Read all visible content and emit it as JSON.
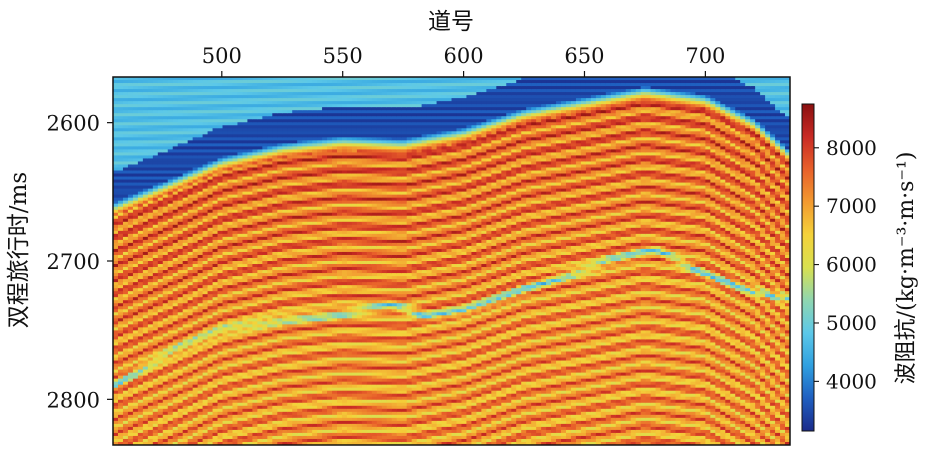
{
  "chart_data": {
    "type": "heatmap",
    "title": "",
    "xlabel": "道号",
    "ylabel": "双程旅行时/ms",
    "x_ticks": [
      "500",
      "550",
      "600",
      "650",
      "700"
    ],
    "x_tick_values": [
      500,
      550,
      600,
      650,
      700
    ],
    "y_ticks": [
      "2600",
      "2700",
      "2800"
    ],
    "y_tick_values": [
      2600,
      2700,
      2800
    ],
    "xlim": [
      455,
      735
    ],
    "ylim": [
      2567,
      2833
    ],
    "colorbar": {
      "label": "波阻抗/(kg·m⁻³·m·s⁻¹)",
      "ticks": [
        "4000",
        "5000",
        "6000",
        "7000",
        "8000"
      ],
      "tick_values": [
        4000,
        5000,
        6000,
        7000,
        8000
      ],
      "range": [
        3150,
        8750
      ],
      "colormap": [
        "#1a2a8a",
        "#1f5fc0",
        "#2fa0e0",
        "#5cc8e8",
        "#8fd6b0",
        "#d8e050",
        "#f4d23a",
        "#f29a30",
        "#e8602a",
        "#c82a24",
        "#8a1010"
      ]
    },
    "structure": {
      "top_boundary_ms": [
        [
          455,
          2658
        ],
        [
          480,
          2640
        ],
        [
          500,
          2625
        ],
        [
          525,
          2615
        ],
        [
          550,
          2610
        ],
        [
          575,
          2612
        ],
        [
          600,
          2604
        ],
        [
          625,
          2590
        ],
        [
          650,
          2582
        ],
        [
          675,
          2574
        ],
        [
          700,
          2580
        ],
        [
          720,
          2597
        ],
        [
          735,
          2620
        ]
      ],
      "green_marker_layer_ms": [
        [
          455,
          2790
        ],
        [
          480,
          2765
        ],
        [
          500,
          2750
        ],
        [
          525,
          2742
        ],
        [
          550,
          2738
        ],
        [
          570,
          2732
        ],
        [
          585,
          2740
        ],
        [
          600,
          2736
        ],
        [
          620,
          2724
        ],
        [
          640,
          2712
        ],
        [
          660,
          2700
        ],
        [
          680,
          2692
        ],
        [
          700,
          2710
        ],
        [
          720,
          2722
        ],
        [
          735,
          2728
        ]
      ]
    }
  }
}
